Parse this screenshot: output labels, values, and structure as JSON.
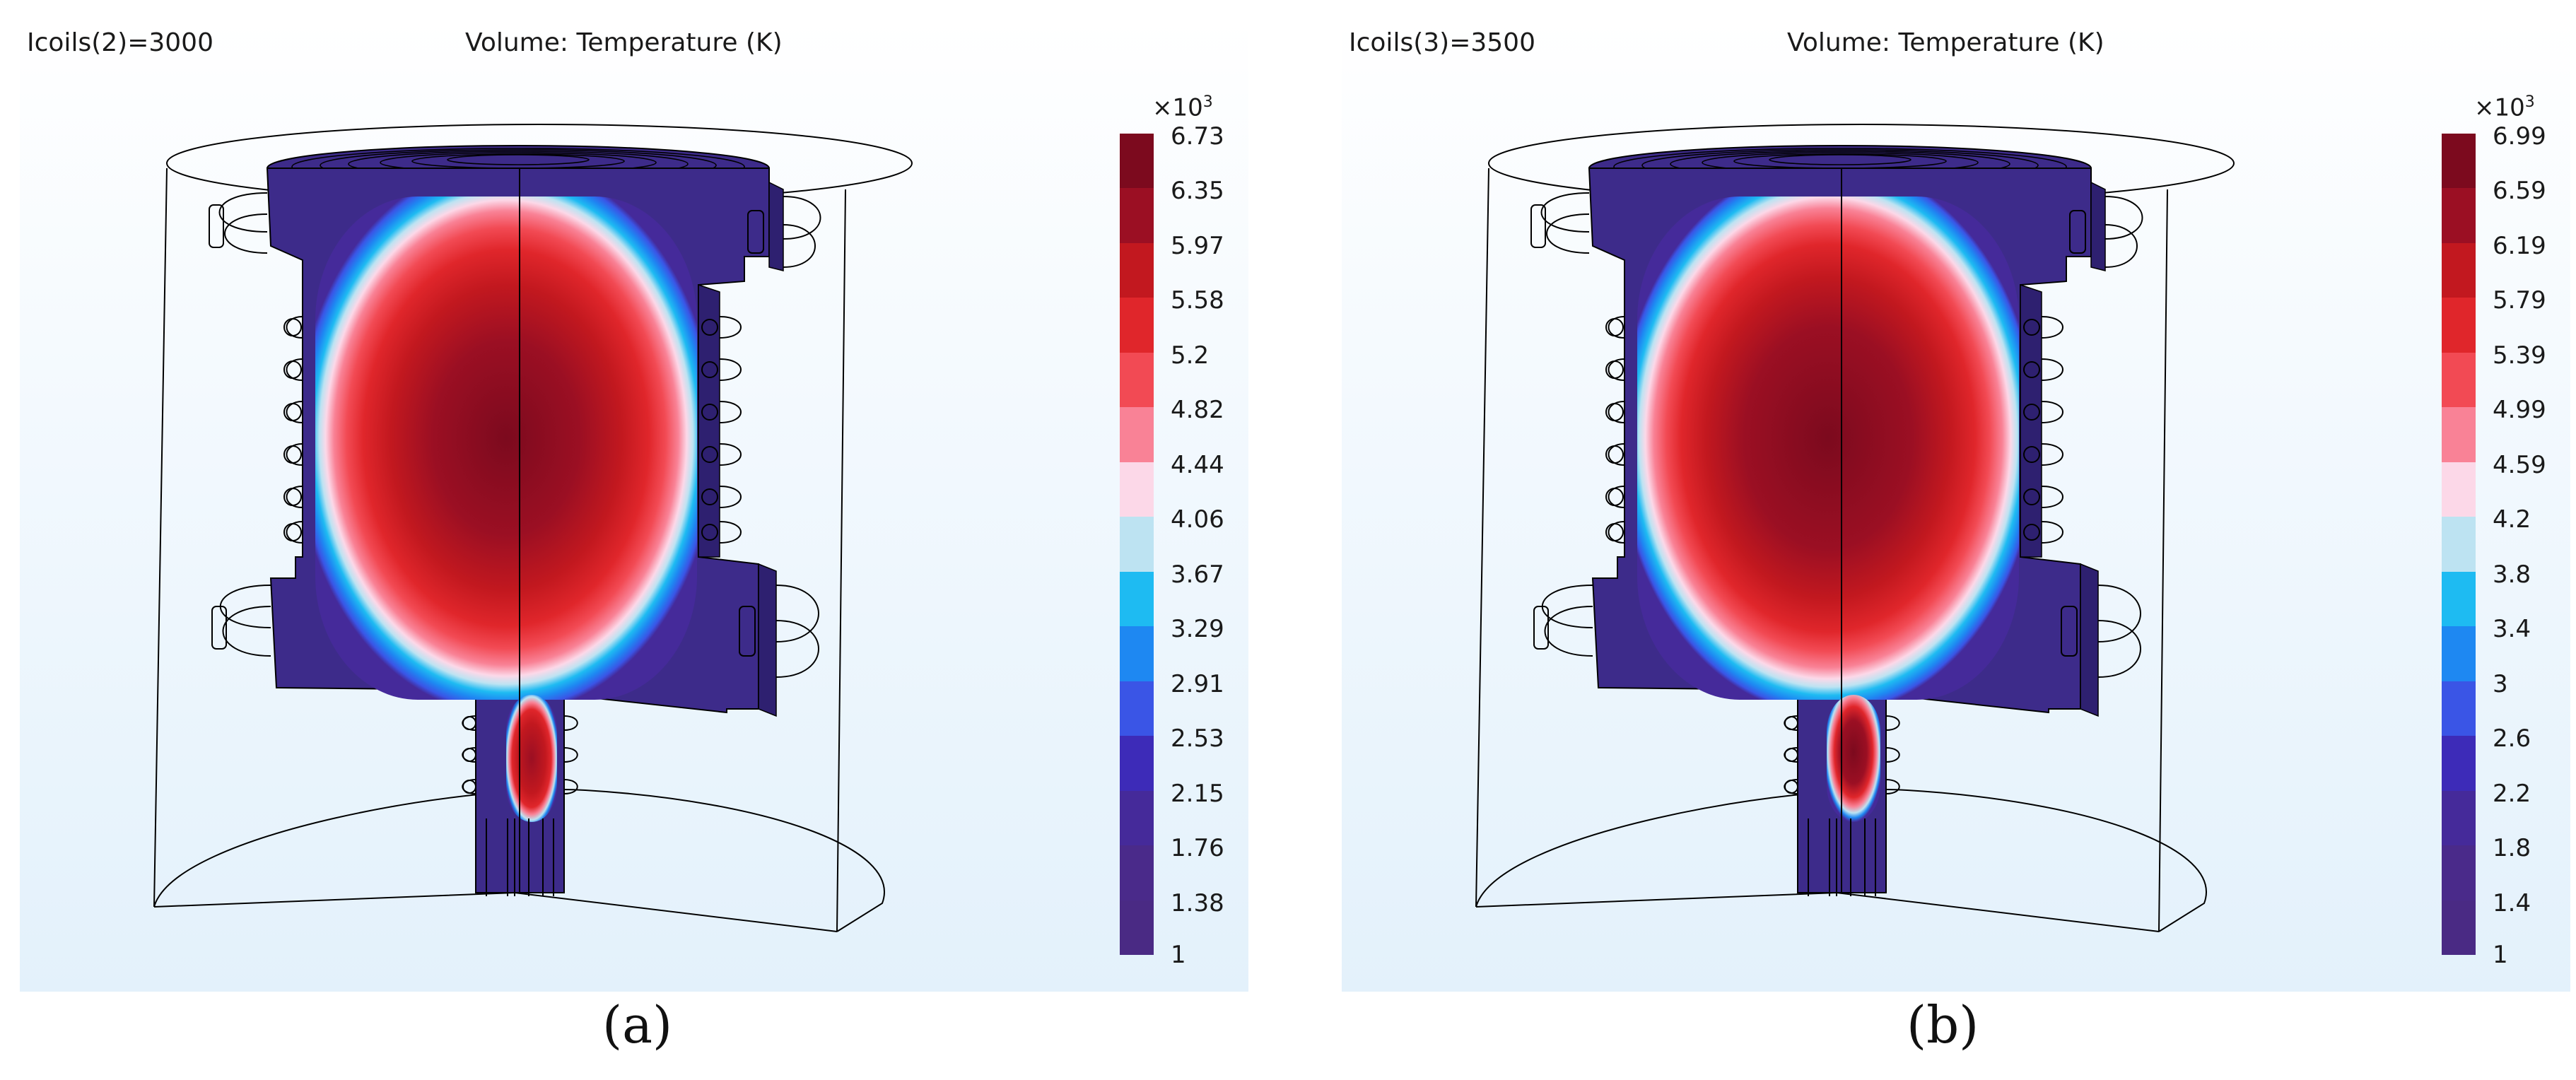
{
  "panels": [
    {
      "param": "Icoils(2)=3000",
      "title": "Volume: Temperature (K)",
      "exponent_base": "×10",
      "exponent_power": "3",
      "ticks": [
        "6.73",
        "6.35",
        "5.97",
        "5.58",
        "5.2",
        "4.82",
        "4.44",
        "4.06",
        "3.67",
        "3.29",
        "2.91",
        "2.53",
        "2.15",
        "1.76",
        "1.38",
        "1"
      ],
      "caption": "(a)"
    },
    {
      "param": "Icoils(3)=3500",
      "title": "Volume: Temperature (K)",
      "exponent_base": "×10",
      "exponent_power": "3",
      "ticks": [
        "6.99",
        "6.59",
        "6.19",
        "5.79",
        "5.39",
        "4.99",
        "4.59",
        "4.2",
        "3.8",
        "3.4",
        "3",
        "2.6",
        "2.2",
        "1.8",
        "1.4",
        "1"
      ],
      "caption": "(b)"
    }
  ],
  "colormap": [
    "#7c0a1e",
    "#9b0f23",
    "#c2181f",
    "#e0262b",
    "#f24a54",
    "#f98296",
    "#fcd8e8",
    "#bde3f2",
    "#1ebbf2",
    "#1e88f2",
    "#3a55e6",
    "#3d2bb8",
    "#452a9a",
    "#4a2a8a",
    "#4a2a84"
  ],
  "colors": {
    "background_top": "#ffffff",
    "background_bottom": "#e3f1fb",
    "outline": "#000000"
  }
}
